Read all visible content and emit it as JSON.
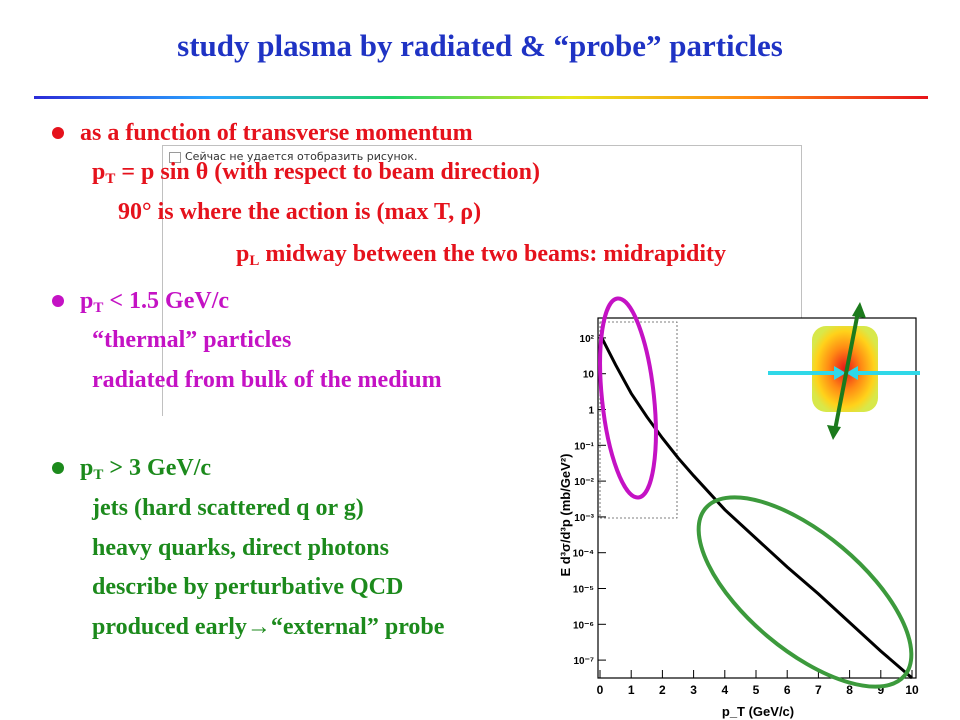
{
  "slide": {
    "title": "study plasma by radiated  & “probe” particles",
    "bullet1": {
      "line1": "as a function of transverse momentum",
      "line2_a": "p",
      "line2_sub": "T",
      "line2_b": " = p sin θ (with respect to beam direction)",
      "line3": "90° is where the action is (max T, ρ)",
      "line4_a": "p",
      "line4_sub": "L",
      "line4_b": " midway between the two beams: midrapidity"
    },
    "bullet2": {
      "line1_a": "p",
      "line1_sub": "T",
      "line1_b": " < 1.5 GeV/c",
      "line2": "“thermal” particles",
      "line3": "radiated from bulk of the medium"
    },
    "bullet3": {
      "line1_a": "p",
      "line1_sub": "T",
      "line1_b": " > 3 GeV/c",
      "line2": "jets (hard scattered q or g)",
      "line3": "heavy quarks, direct photons",
      "line4": "describe by perturbative QCD",
      "line5": "produced early→“external” probe"
    },
    "overlay_caption": "Сейчас не удается отобразить рисунок."
  },
  "colors": {
    "title": "#1f33c4",
    "bullet1": "#e5121c",
    "bullet2": "#c412c4",
    "bullet3": "#1c8a1c",
    "curve": "#000000",
    "ellipse_low": "#c412c4",
    "ellipse_high": "#3c9a3c",
    "beam": "#2fd8e8",
    "beam_cross": "#1c7a1c"
  },
  "chart_data": {
    "type": "line",
    "xlabel": "p_T (GeV/c)",
    "ylabel": "E d³σ/d³p  (mb/GeV²)",
    "log_y": true,
    "xlim": [
      0,
      10
    ],
    "ylim_exp": [
      -7.5,
      2.5
    ],
    "x_ticks": [
      "0",
      "1",
      "2",
      "3",
      "4",
      "5",
      "6",
      "7",
      "8",
      "9",
      "10"
    ],
    "y_ticks": [
      "10²",
      "10",
      "1",
      "10⁻¹",
      "10⁻²",
      "10⁻³",
      "10⁻⁴",
      "10⁻⁵",
      "10⁻⁶",
      "10⁻⁷"
    ],
    "series": [
      {
        "x": [
          0,
          0.5,
          1,
          1.5,
          2,
          2.5,
          3,
          4,
          5,
          6,
          7,
          8,
          9,
          10
        ],
        "log10_y": [
          2.1,
          1.25,
          0.45,
          -0.2,
          -0.8,
          -1.35,
          -1.85,
          -2.8,
          -3.6,
          -4.4,
          -5.15,
          -5.95,
          -6.75,
          -7.5
        ]
      }
    ]
  }
}
